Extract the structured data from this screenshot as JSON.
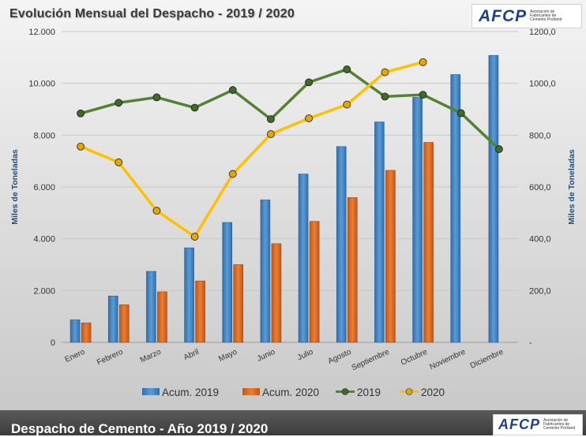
{
  "title": "Evolución Mensual del Despacho - 2019 / 2020",
  "logo": {
    "text": "AFCP",
    "subtext": "Asociación de Fabricantes de Cemento Portland"
  },
  "footer": {
    "title": "Despacho de Cemento - Año 2019 / 2020"
  },
  "colors": {
    "acum2019": "#5b9bd5",
    "acum2020": "#ed7d31",
    "line2019": "#548235",
    "line2020": "#ffc000",
    "axis_text": "#1f4e79"
  },
  "chart_data": {
    "type": "bar",
    "categories": [
      "Enero",
      "Febrero",
      "Marzo",
      "Abril",
      "Mayo",
      "Junio",
      "Julio",
      "Agosto",
      "Septiembre",
      "Octubre",
      "Noviembre",
      "Diciembre"
    ],
    "series": [
      {
        "name": "Acum. 2019",
        "type": "bar",
        "axis": "left",
        "values": [
          870,
          1790,
          2740,
          3650,
          4630,
          5500,
          6500,
          7560,
          8510,
          9460,
          10340,
          11080
        ]
      },
      {
        "name": "Acum. 2020",
        "type": "bar",
        "axis": "left",
        "values": [
          750,
          1450,
          1950,
          2370,
          3000,
          3810,
          4670,
          5590,
          6640,
          7720,
          null,
          null
        ]
      },
      {
        "name": "2019",
        "type": "line",
        "axis": "right",
        "values": [
          884,
          925,
          946,
          906,
          974,
          862,
          1004,
          1054,
          949,
          956,
          885,
          746
        ]
      },
      {
        "name": "2020",
        "type": "line",
        "axis": "right",
        "values": [
          756,
          695,
          508,
          408,
          650,
          804,
          865,
          918,
          1043,
          1082,
          null,
          null
        ]
      }
    ],
    "ylabel": "Miles de Toneladas",
    "y2label": "Miles de Toneladas",
    "ylim": [
      0,
      12000
    ],
    "y2lim": [
      0,
      1200
    ],
    "yticks": [
      "0",
      "2.000",
      "4.000",
      "6.000",
      "8.000",
      "10.000",
      "12.000"
    ],
    "y2ticks": [
      "-",
      "200,0",
      "400,0",
      "600,0",
      "800,0",
      "1000,0",
      "1200,0"
    ],
    "legend": "bottom",
    "grid": true
  }
}
